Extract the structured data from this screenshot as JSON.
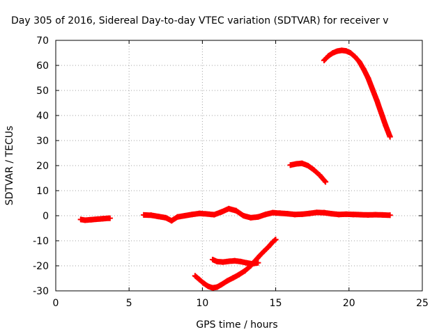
{
  "chart_data": {
    "type": "scatter",
    "title": "Day 305 of 2016, Sidereal Day-to-day VTEC variation (SDTVAR) for receiver v",
    "xlabel": "GPS time / hours",
    "ylabel": "SDTVAR / TECUs",
    "xlim": [
      0,
      25
    ],
    "ylim": [
      -30,
      70
    ],
    "xticks": [
      "0",
      "5",
      "10",
      "15",
      "20",
      "25"
    ],
    "yticks": [
      "-30",
      "-20",
      "-10",
      "0",
      "10",
      "20",
      "30",
      "40",
      "50",
      "60",
      "70"
    ],
    "grid": true,
    "marker": "plus",
    "color": "#ff0000",
    "segments": [
      {
        "x": [
          1.7,
          2.0,
          2.4,
          2.8,
          3.2,
          3.6,
          3.7
        ],
        "y": [
          -1.5,
          -1.8,
          -1.6,
          -1.4,
          -1.2,
          -1.0,
          -1.0
        ]
      },
      {
        "x": [
          6.0,
          6.5,
          7.0,
          7.5,
          7.9,
          8.3,
          8.8,
          9.3,
          9.8,
          10.3,
          10.8,
          11.3,
          11.8,
          12.3,
          12.8,
          13.3,
          13.8,
          14.3,
          14.8,
          15.3,
          15.8,
          16.3,
          16.8,
          17.3,
          17.8,
          18.3,
          18.8,
          19.3,
          19.8,
          20.3,
          20.8,
          21.3,
          21.8,
          22.3,
          22.8
        ],
        "y": [
          0.3,
          0.2,
          -0.3,
          -0.8,
          -2.0,
          -0.5,
          0.0,
          0.5,
          0.9,
          0.7,
          0.4,
          1.5,
          2.8,
          2.0,
          0.0,
          -0.8,
          -0.5,
          0.5,
          1.2,
          1.0,
          0.8,
          0.5,
          0.6,
          0.9,
          1.3,
          1.2,
          0.8,
          0.5,
          0.6,
          0.5,
          0.4,
          0.3,
          0.4,
          0.3,
          0.2
        ]
      },
      {
        "x": [
          9.5,
          9.8,
          10.1,
          10.4,
          10.7,
          11.0,
          11.3,
          11.7,
          12.1,
          12.5,
          12.9,
          13.3,
          13.6,
          13.9,
          14.2,
          14.5,
          14.8,
          15.0
        ],
        "y": [
          -24,
          -25.5,
          -27,
          -28.2,
          -28.8,
          -28.5,
          -27.5,
          -26,
          -24.8,
          -23.5,
          -22,
          -20,
          -18,
          -16,
          -14.2,
          -12.5,
          -10.5,
          -9.5
        ]
      },
      {
        "x": [
          10.7,
          11.0,
          11.4,
          11.8,
          12.2,
          12.6,
          13.0,
          13.4,
          13.8
        ],
        "y": [
          -17.5,
          -18.3,
          -18.5,
          -18.2,
          -18.0,
          -18.3,
          -18.8,
          -19.2,
          -18.8
        ]
      },
      {
        "x": [
          16.0,
          16.4,
          16.8,
          17.2,
          17.6,
          18.0,
          18.4
        ],
        "y": [
          20.2,
          20.7,
          20.9,
          20.0,
          18.3,
          16.2,
          13.5
        ]
      },
      {
        "x": [
          18.3,
          18.6,
          18.9,
          19.2,
          19.5,
          19.8,
          20.1,
          20.4,
          20.7,
          21.0,
          21.3,
          21.6,
          21.9,
          22.2,
          22.5,
          22.8
        ],
        "y": [
          62,
          63.8,
          65,
          65.7,
          66,
          65.8,
          65,
          63.5,
          61.5,
          58.5,
          55,
          50.5,
          46,
          41,
          36,
          31.5
        ]
      }
    ]
  }
}
